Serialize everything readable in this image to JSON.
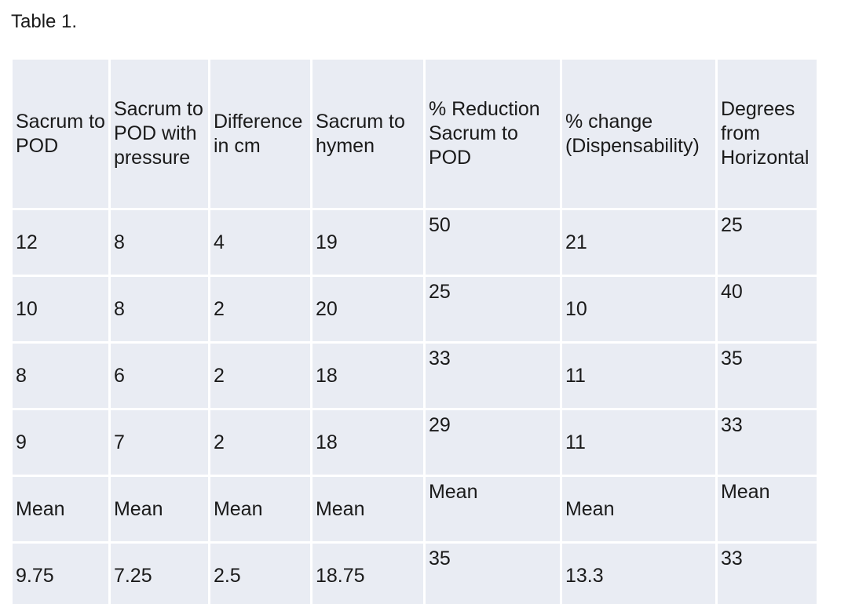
{
  "caption": "Table 1.",
  "columns": [
    [
      "Sacrum to",
      "POD"
    ],
    [
      "Sacrum to",
      "POD with",
      "pressure"
    ],
    [
      "Difference",
      "in cm"
    ],
    [
      "Sacrum to",
      "hymen"
    ],
    [
      "% Reduction",
      "Sacrum to",
      "POD"
    ],
    [
      "% change",
      "(Dispensability)"
    ],
    [
      "Degrees",
      "from",
      "Horizontal"
    ]
  ],
  "rows": [
    [
      "12",
      "8",
      "4",
      "19",
      "50",
      "21",
      "25"
    ],
    [
      "10",
      "8",
      "2",
      "20",
      "25",
      "10",
      "40"
    ],
    [
      "8",
      "6",
      "2",
      "18",
      "33",
      "11",
      "35"
    ],
    [
      "9",
      "7",
      "2",
      "18",
      "29",
      "11",
      "33"
    ],
    [
      "Mean",
      "Mean",
      "Mean",
      "Mean",
      "Mean",
      "Mean",
      "Mean"
    ],
    [
      "9.75",
      "7.25",
      "2.5",
      "18.75",
      "35",
      "13.3",
      "33"
    ]
  ]
}
